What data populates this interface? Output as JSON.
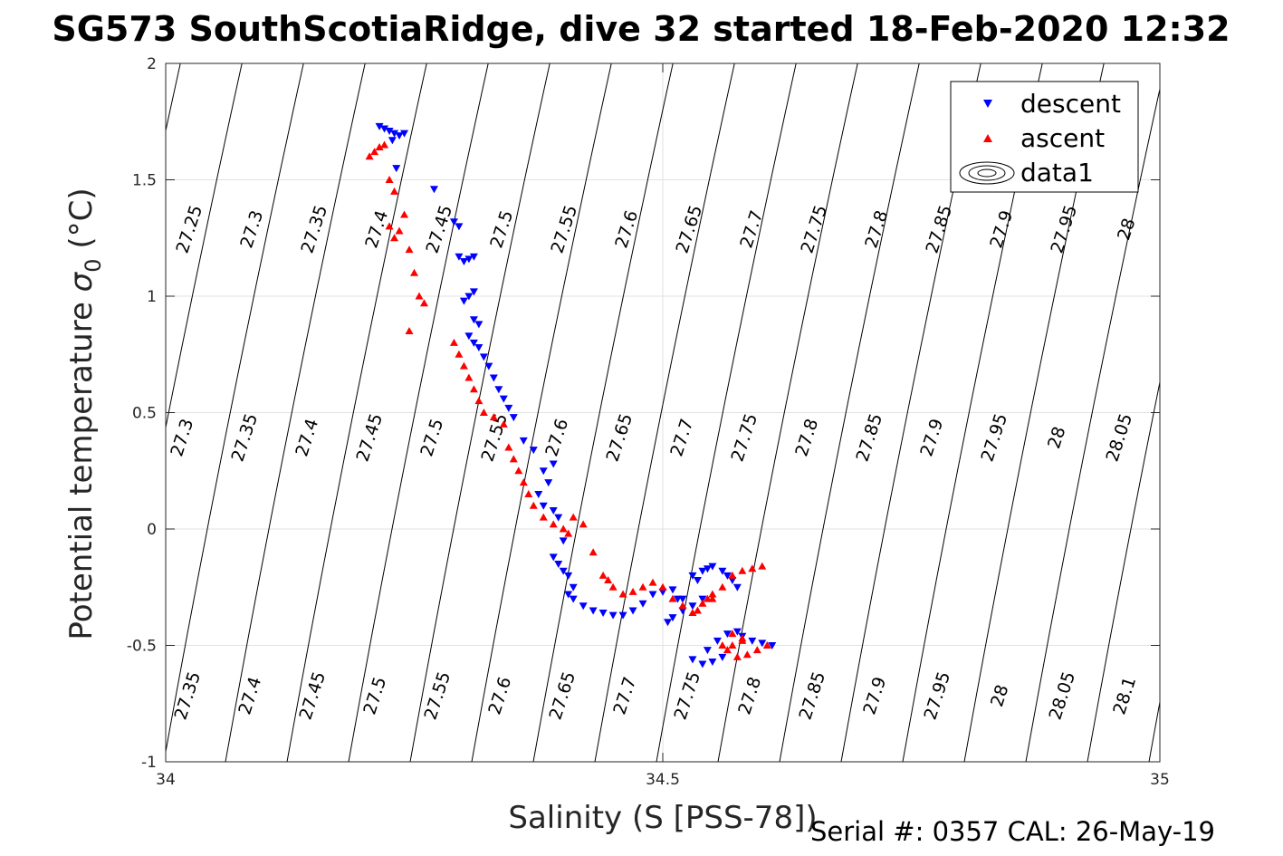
{
  "title": "SG573 SouthScotiaRidge, dive 32 started 18-Feb-2020 12:32",
  "footer": "Serial #: 0357  CAL: 26-May-19",
  "chart_data": {
    "type": "scatter",
    "xlabel": "Salinity (S [PSS-78])",
    "ylabel_main": "Potential temperature ",
    "ylabel_sym": "σ",
    "ylabel_sub": "0",
    "ylabel_unit": " (°C)",
    "xlim": [
      34,
      35
    ],
    "ylim": [
      -1,
      2
    ],
    "xticks": [
      "34",
      "34.5",
      "35"
    ],
    "yticks": [
      "-1",
      "-0.5",
      "0",
      "0.5",
      "1",
      "1.5",
      "2"
    ],
    "grid": true,
    "legend_position": "top-right",
    "legend": [
      "descent",
      "ascent",
      "data1"
    ],
    "colors": {
      "descent": "#0000ff",
      "ascent": "#ff0000",
      "contour": "#000000"
    },
    "contour_labels_top": [
      "27.25",
      "27.3",
      "27.35",
      "27.4",
      "27.45",
      "27.5",
      "27.55",
      "27.6",
      "27.65",
      "27.7",
      "27.75",
      "27.8",
      "27.85",
      "27.9",
      "27.95",
      "28"
    ],
    "contour_labels_mid": [
      "27.3",
      "27.35",
      "27.4",
      "27.45",
      "27.5",
      "27.55",
      "27.6",
      "27.65",
      "27.7",
      "27.75",
      "27.8",
      "27.85",
      "27.9",
      "27.95",
      "28",
      "28.05"
    ],
    "contour_labels_bottom": [
      "27.35",
      "27.4",
      "27.45",
      "27.5",
      "27.55",
      "27.6",
      "27.65",
      "27.7",
      "27.75",
      "27.8",
      "27.85",
      "27.9",
      "27.95",
      "28",
      "28.05",
      "28.1"
    ],
    "series": [
      {
        "name": "descent",
        "x": [
          34.215,
          34.22,
          34.225,
          34.23,
          34.235,
          34.24,
          34.232,
          34.228,
          34.27,
          34.29,
          34.295,
          34.295,
          34.3,
          34.305,
          34.31,
          34.31,
          34.305,
          34.3,
          34.31,
          34.315,
          34.305,
          34.31,
          34.315,
          34.32,
          34.325,
          34.33,
          34.335,
          34.34,
          34.345,
          34.35,
          34.36,
          34.37,
          34.38,
          34.39,
          34.385,
          34.375,
          34.38,
          34.39,
          34.395,
          34.4,
          34.39,
          34.395,
          34.4,
          34.405,
          34.41,
          34.405,
          34.41,
          34.42,
          34.43,
          34.44,
          34.45,
          34.46,
          34.47,
          34.48,
          34.49,
          34.5,
          34.51,
          34.515,
          34.52,
          34.53,
          34.535,
          34.54,
          34.545,
          34.55,
          34.56,
          34.565,
          34.57,
          34.575,
          34.56,
          34.55,
          34.54,
          34.53,
          34.545,
          34.555,
          34.565,
          34.575,
          34.58,
          34.59,
          34.6,
          34.61,
          34.505,
          34.51,
          34.52,
          34.53,
          34.54
        ],
        "y": [
          1.73,
          1.72,
          1.71,
          1.7,
          1.69,
          1.7,
          1.55,
          1.67,
          1.46,
          1.32,
          1.3,
          1.17,
          1.15,
          1.16,
          1.17,
          1.02,
          1.0,
          0.98,
          0.9,
          0.88,
          0.83,
          0.8,
          0.78,
          0.74,
          0.7,
          0.65,
          0.6,
          0.56,
          0.52,
          0.48,
          0.38,
          0.34,
          0.25,
          0.28,
          0.2,
          0.15,
          0.1,
          0.08,
          0.05,
          -0.05,
          -0.12,
          -0.15,
          -0.18,
          -0.2,
          -0.25,
          -0.28,
          -0.3,
          -0.33,
          -0.35,
          -0.36,
          -0.37,
          -0.37,
          -0.35,
          -0.32,
          -0.28,
          -0.27,
          -0.26,
          -0.3,
          -0.3,
          -0.2,
          -0.22,
          -0.18,
          -0.17,
          -0.16,
          -0.18,
          -0.2,
          -0.22,
          -0.25,
          -0.55,
          -0.57,
          -0.58,
          -0.56,
          -0.52,
          -0.48,
          -0.45,
          -0.44,
          -0.46,
          -0.48,
          -0.49,
          -0.5,
          -0.4,
          -0.38,
          -0.35,
          -0.33,
          -0.3
        ]
      },
      {
        "name": "ascent",
        "x": [
          34.205,
          34.21,
          34.215,
          34.22,
          34.225,
          34.23,
          34.225,
          34.23,
          34.235,
          34.24,
          34.245,
          34.25,
          34.255,
          34.26,
          34.245,
          34.29,
          34.295,
          34.3,
          34.305,
          34.31,
          34.315,
          34.32,
          34.33,
          34.34,
          34.345,
          34.35,
          34.355,
          34.36,
          34.365,
          34.37,
          34.38,
          34.39,
          34.4,
          34.405,
          34.41,
          34.42,
          34.43,
          34.44,
          34.445,
          34.45,
          34.46,
          34.47,
          34.48,
          34.49,
          34.5,
          34.51,
          34.52,
          34.53,
          34.535,
          34.54,
          34.545,
          34.55,
          34.56,
          34.57,
          34.58,
          34.59,
          34.6,
          34.58,
          34.57,
          34.565,
          34.575,
          34.585,
          34.595,
          34.605,
          34.57,
          34.58,
          34.56,
          34.55
        ],
        "y": [
          1.6,
          1.62,
          1.64,
          1.65,
          1.5,
          1.45,
          1.3,
          1.25,
          1.28,
          1.35,
          1.2,
          1.1,
          1.0,
          0.97,
          0.85,
          0.8,
          0.75,
          0.7,
          0.65,
          0.6,
          0.55,
          0.5,
          0.48,
          0.45,
          0.35,
          0.3,
          0.25,
          0.2,
          0.15,
          0.1,
          0.05,
          0.02,
          0.0,
          -0.02,
          0.05,
          0.02,
          -0.1,
          -0.2,
          -0.22,
          -0.25,
          -0.28,
          -0.27,
          -0.25,
          -0.23,
          -0.25,
          -0.3,
          -0.33,
          -0.36,
          -0.35,
          -0.32,
          -0.3,
          -0.28,
          -0.25,
          -0.2,
          -0.18,
          -0.17,
          -0.16,
          -0.48,
          -0.5,
          -0.52,
          -0.55,
          -0.54,
          -0.52,
          -0.5,
          -0.45,
          -0.47,
          -0.5,
          -0.3
        ]
      }
    ]
  }
}
